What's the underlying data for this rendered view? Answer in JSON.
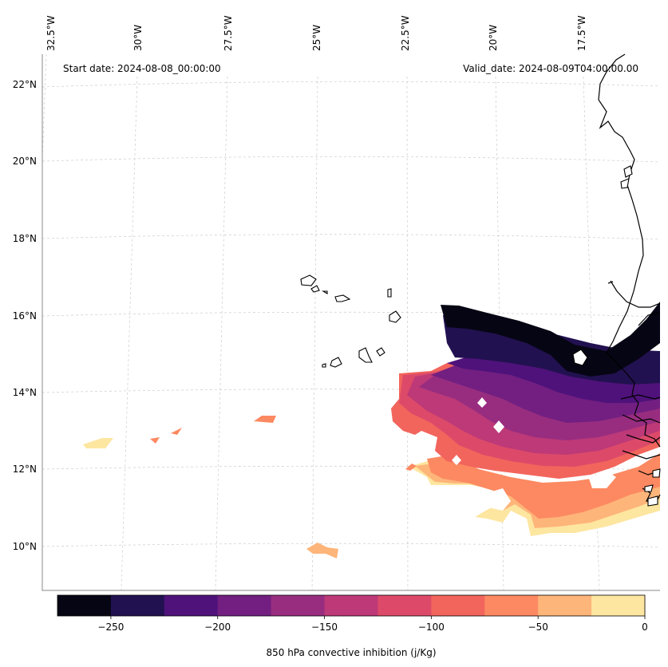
{
  "map": {
    "start_label": "Start date: 2024-08-08_00:00:00",
    "valid_label": "Valid_date: 2024-08-09T04:00:00.00",
    "lon_labels": [
      "32.5°W",
      "30°W",
      "27.5°W",
      "25°W",
      "22.5°W",
      "20°W",
      "17.5°W"
    ],
    "lat_labels": [
      "22°N",
      "20°N",
      "18°N",
      "16°N",
      "14°N",
      "12°N",
      "10°N"
    ],
    "region": "Cape Verde Islands and West African coast"
  },
  "colorbar": {
    "title": "850 hPa convective inhibition (j/Kg)",
    "ticks": [
      "−250",
      "−200",
      "−150",
      "−100",
      "−50",
      "0"
    ],
    "tick_values": [
      -250,
      -200,
      -150,
      -100,
      -50,
      0
    ],
    "levels": [
      -275,
      -250,
      -225,
      -200,
      -175,
      -150,
      -125,
      -100,
      -75,
      -50,
      -25,
      0
    ],
    "colors": [
      "#060514",
      "#221150",
      "#4f127b",
      "#721f81",
      "#982d80",
      "#bd3977",
      "#dd4a69",
      "#f2655c",
      "#fc8961",
      "#feb57a",
      "#fde6a0"
    ]
  }
}
